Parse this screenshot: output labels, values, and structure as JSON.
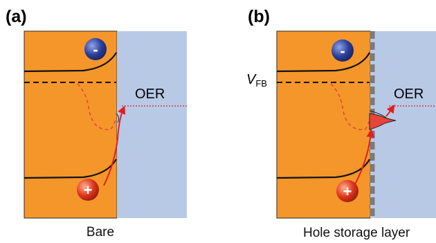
{
  "panels": {
    "a": {
      "label": "(a)",
      "caption": "Bare",
      "oer_label": "OER"
    },
    "b": {
      "label": "(b)",
      "caption": "Hole storage layer",
      "oer_label": "OER",
      "vfb_main": "V",
      "vfb_sub": "FB"
    }
  },
  "charges": {
    "electron": "-",
    "hole": "+"
  },
  "colors": {
    "semiconductor": "#F5962A",
    "electrolyte": "#B8C9E6",
    "band_edge": "#111111",
    "fermi_level": "#111111",
    "quasi_fermi": "#E0443A",
    "redox_level": "#E02020",
    "hole_arrow": "#E02020",
    "electron_ball": "#2C3F9A",
    "hole_ball": "#E0341C",
    "storage_layer": "#808080",
    "surface_state_fill": "#E8443A"
  }
}
